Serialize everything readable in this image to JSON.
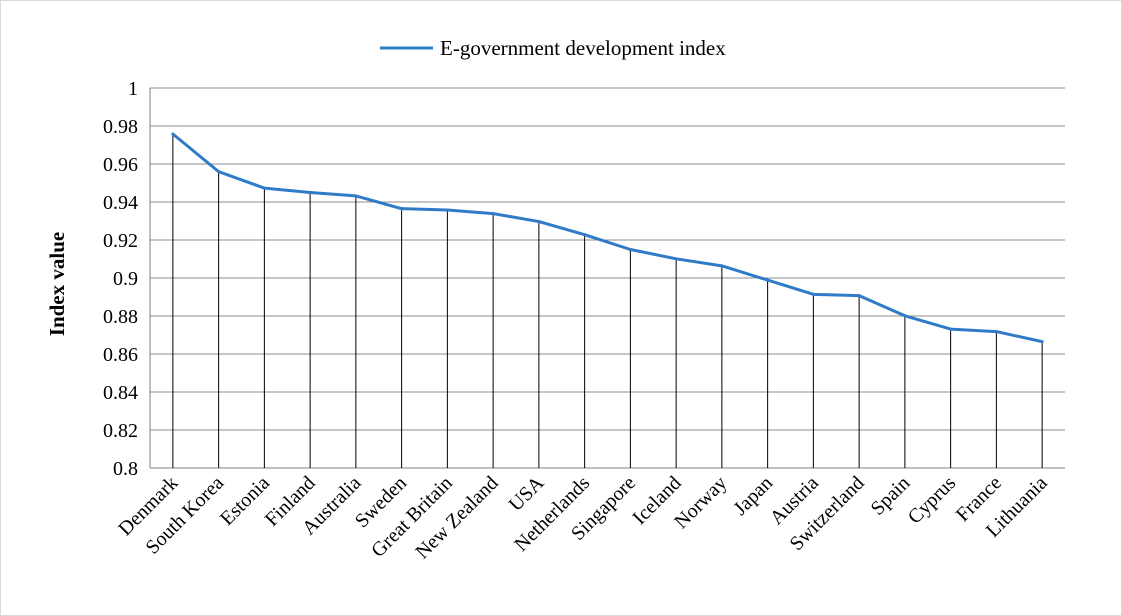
{
  "chart_data": {
    "type": "line",
    "title": "",
    "xlabel": "",
    "ylabel": "Index value",
    "ylim": [
      0.8,
      1
    ],
    "yticks": [
      "0.8",
      "0.82",
      "0.84",
      "0.86",
      "0.88",
      "0.9",
      "0.92",
      "0.94",
      "0.96",
      "0.98",
      "1"
    ],
    "grid": true,
    "legend_position": "top-center",
    "categories": [
      "Denmark",
      "South Korea",
      "Estonia",
      "Finland",
      "Australia",
      "Sweden",
      "Great Britain",
      "New Zealand",
      "USA",
      "Netherlands",
      "Singapore",
      "Iceland",
      "Norway",
      "Japan",
      "Austria",
      "Switzerland",
      "Spain",
      "Cyprus",
      "France",
      "Lithuania"
    ],
    "series": [
      {
        "name": "E-government development index",
        "color": "#2f7bc8",
        "values": [
          0.9758,
          0.956,
          0.9473,
          0.945,
          0.9432,
          0.9365,
          0.9358,
          0.9339,
          0.9297,
          0.9228,
          0.915,
          0.9101,
          0.9064,
          0.8989,
          0.8914,
          0.8907,
          0.8801,
          0.8731,
          0.8718,
          0.8665
        ]
      }
    ]
  }
}
